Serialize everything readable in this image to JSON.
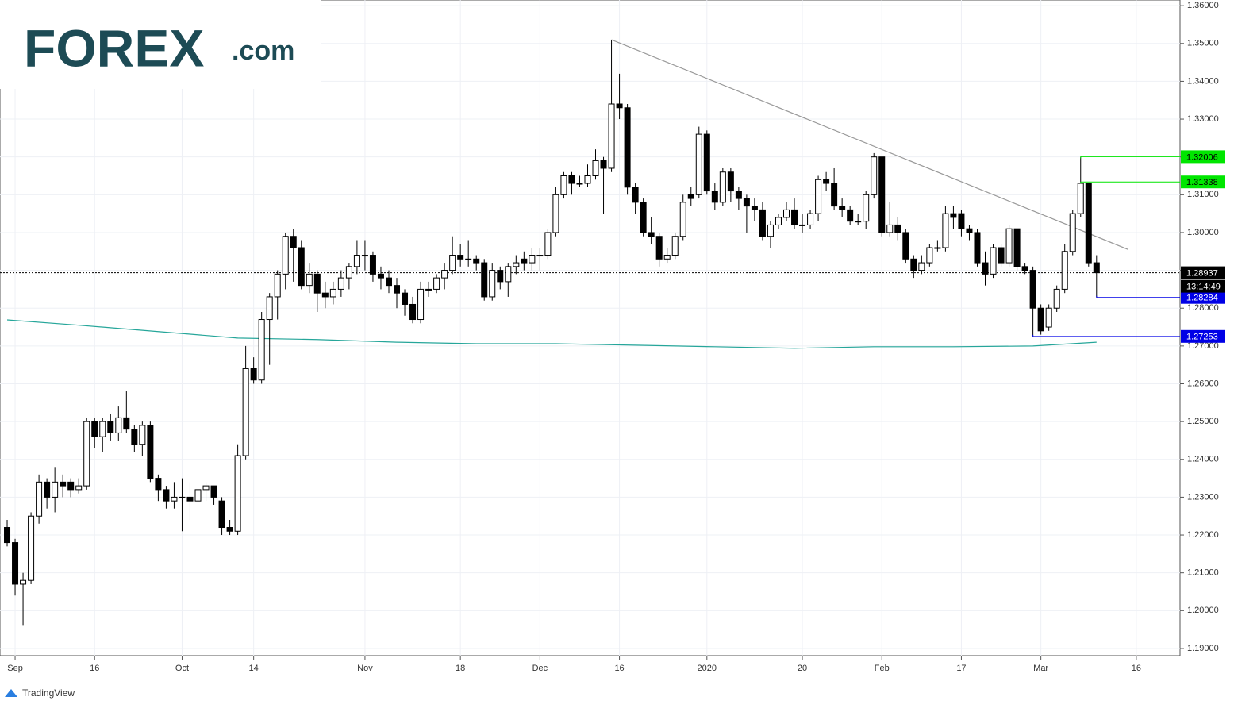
{
  "chart_data": {
    "type": "candlestick",
    "logo": {
      "brand": "FOREX",
      "suffix": ".com"
    },
    "footer": "TradingView",
    "xlim": [
      -0.9,
      147.5
    ],
    "xticks": [
      {
        "value": 1,
        "label": "Sep"
      },
      {
        "value": 11,
        "label": "16"
      },
      {
        "value": 22,
        "label": "Oct"
      },
      {
        "value": 31,
        "label": "14"
      },
      {
        "value": 45,
        "label": "Nov"
      },
      {
        "value": 57,
        "label": "18"
      },
      {
        "value": 67,
        "label": "Dec"
      },
      {
        "value": 77,
        "label": "16"
      },
      {
        "value": 88,
        "label": "2020"
      },
      {
        "value": 100,
        "label": "20"
      },
      {
        "value": 110,
        "label": "Feb"
      },
      {
        "value": 120,
        "label": "17"
      },
      {
        "value": 130,
        "label": "Mar"
      },
      {
        "value": 142,
        "label": "16"
      }
    ],
    "ylim": [
      1.1881,
      1.3615
    ],
    "yticks": [
      {
        "value": 1.19,
        "label": "1.19000"
      },
      {
        "value": 1.2,
        "label": "1.20000"
      },
      {
        "value": 1.21,
        "label": "1.21000"
      },
      {
        "value": 1.22,
        "label": "1.22000"
      },
      {
        "value": 1.23,
        "label": "1.23000"
      },
      {
        "value": 1.24,
        "label": "1.24000"
      },
      {
        "value": 1.25,
        "label": "1.25000"
      },
      {
        "value": 1.26,
        "label": "1.26000"
      },
      {
        "value": 1.27,
        "label": "1.27000"
      },
      {
        "value": 1.28,
        "label": "1.28000"
      },
      {
        "value": 1.29,
        "label": "1.29000"
      },
      {
        "value": 1.3,
        "label": "1.30000"
      },
      {
        "value": 1.31,
        "label": "1.31000"
      },
      {
        "value": 1.32,
        "label": "1.32000"
      },
      {
        "value": 1.33,
        "label": "1.33000"
      },
      {
        "value": 1.34,
        "label": "1.34000"
      },
      {
        "value": 1.35,
        "label": "1.35000"
      },
      {
        "value": 1.36,
        "label": "1.36000"
      }
    ],
    "grid": true,
    "up_color": "#ffffff",
    "down_color": "#000000",
    "open": [
      1.222,
      1.218,
      1.207,
      1.208,
      1.225,
      1.234,
      1.23,
      1.234,
      1.234,
      1.232,
      1.233,
      1.25,
      1.246,
      1.25,
      1.247,
      1.251,
      1.248,
      1.244,
      1.249,
      1.235,
      1.232,
      1.229,
      1.23,
      1.23,
      1.229,
      1.232,
      1.233,
      1.229,
      1.222,
      1.221,
      1.241,
      1.264,
      1.261,
      1.277,
      1.283,
      1.289,
      1.299,
      1.296,
      1.286,
      1.289,
      1.284,
      1.283,
      1.285,
      1.288,
      1.291,
      1.294,
      1.294,
      1.289,
      1.288,
      1.286,
      1.284,
      1.281,
      1.277,
      1.285,
      1.285,
      1.288,
      1.29,
      1.294,
      1.293,
      1.293,
      1.292,
      1.283,
      1.29,
      1.287,
      1.291,
      1.293,
      1.292,
      1.294,
      1.294,
      1.3,
      1.31,
      1.315,
      1.313,
      1.313,
      1.315,
      1.319,
      1.317,
      1.334,
      1.333,
      1.312,
      1.308,
      1.3,
      1.299,
      1.293,
      1.294,
      1.299,
      1.31,
      1.31,
      1.326,
      1.311,
      1.308,
      1.316,
      1.311,
      1.309,
      1.307,
      1.306,
      1.299,
      1.302,
      1.304,
      1.306,
      1.302,
      1.302,
      1.305,
      1.314,
      1.313,
      1.307,
      1.306,
      1.303,
      1.303,
      1.31,
      1.32,
      1.3,
      1.302,
      1.3,
      1.293,
      1.29,
      1.292,
      1.296,
      1.296,
      1.305,
      1.305,
      1.301,
      1.3,
      1.292,
      1.289,
      1.296,
      1.292,
      1.301,
      1.291,
      1.29,
      1.28,
      1.275,
      1.28,
      1.285,
      1.295,
      1.305,
      1.313,
      1.292
    ],
    "high": [
      1.224,
      1.219,
      1.21,
      1.226,
      1.236,
      1.235,
      1.238,
      1.236,
      1.235,
      1.235,
      1.251,
      1.251,
      1.251,
      1.252,
      1.254,
      1.258,
      1.249,
      1.25,
      1.25,
      1.236,
      1.233,
      1.234,
      1.235,
      1.234,
      1.238,
      1.234,
      1.233,
      1.23,
      1.224,
      1.244,
      1.27,
      1.267,
      1.279,
      1.284,
      1.29,
      1.3,
      1.301,
      1.298,
      1.292,
      1.29,
      1.287,
      1.287,
      1.29,
      1.292,
      1.298,
      1.298,
      1.295,
      1.291,
      1.29,
      1.288,
      1.285,
      1.283,
      1.287,
      1.287,
      1.289,
      1.292,
      1.299,
      1.297,
      1.298,
      1.294,
      1.293,
      1.292,
      1.291,
      1.292,
      1.294,
      1.295,
      1.296,
      1.296,
      1.301,
      1.312,
      1.316,
      1.316,
      1.315,
      1.318,
      1.322,
      1.32,
      1.351,
      1.342,
      1.334,
      1.313,
      1.309,
      1.304,
      1.3,
      1.296,
      1.3,
      1.31,
      1.312,
      1.328,
      1.327,
      1.313,
      1.317,
      1.317,
      1.312,
      1.31,
      1.309,
      1.308,
      1.303,
      1.305,
      1.308,
      1.309,
      1.305,
      1.306,
      1.315,
      1.316,
      1.317,
      1.309,
      1.307,
      1.305,
      1.311,
      1.321,
      1.32,
      1.308,
      1.304,
      1.301,
      1.294,
      1.294,
      1.297,
      1.298,
      1.307,
      1.307,
      1.306,
      1.302,
      1.301,
      1.295,
      1.297,
      1.297,
      1.302,
      1.301,
      1.292,
      1.291,
      1.281,
      1.281,
      1.286,
      1.297,
      1.306,
      1.32006,
      1.313,
      1.294
    ],
    "low": [
      1.217,
      1.204,
      1.196,
      1.207,
      1.223,
      1.227,
      1.226,
      1.23,
      1.23,
      1.231,
      1.232,
      1.243,
      1.242,
      1.245,
      1.245,
      1.247,
      1.242,
      1.241,
      1.234,
      1.229,
      1.227,
      1.227,
      1.221,
      1.224,
      1.228,
      1.229,
      1.228,
      1.22,
      1.22,
      1.22,
      1.24,
      1.26,
      1.26,
      1.265,
      1.277,
      1.285,
      1.287,
      1.285,
      1.284,
      1.279,
      1.28,
      1.281,
      1.283,
      1.285,
      1.289,
      1.29,
      1.287,
      1.285,
      1.284,
      1.28,
      1.278,
      1.276,
      1.276,
      1.283,
      1.284,
      1.285,
      1.289,
      1.291,
      1.291,
      1.29,
      1.282,
      1.282,
      1.285,
      1.283,
      1.289,
      1.29,
      1.29,
      1.29,
      1.293,
      1.299,
      1.309,
      1.31,
      1.312,
      1.312,
      1.314,
      1.305,
      1.316,
      1.33,
      1.31,
      1.305,
      1.299,
      1.297,
      1.291,
      1.292,
      1.293,
      1.298,
      1.307,
      1.309,
      1.31,
      1.306,
      1.307,
      1.308,
      1.306,
      1.3,
      1.303,
      1.298,
      1.296,
      1.301,
      1.303,
      1.301,
      1.3,
      1.301,
      1.303,
      1.311,
      1.306,
      1.304,
      1.302,
      1.302,
      1.301,
      1.309,
      1.299,
      1.299,
      1.298,
      1.292,
      1.288,
      1.289,
      1.291,
      1.295,
      1.295,
      1.301,
      1.299,
      1.298,
      1.291,
      1.286,
      1.288,
      1.291,
      1.291,
      1.29,
      1.289,
      1.27253,
      1.273,
      1.274,
      1.279,
      1.284,
      1.294,
      1.304,
      1.291,
      1.28284
    ],
    "close": [
      1.218,
      1.207,
      1.208,
      1.225,
      1.234,
      1.23,
      1.234,
      1.233,
      1.232,
      1.233,
      1.25,
      1.246,
      1.25,
      1.247,
      1.251,
      1.248,
      1.244,
      1.249,
      1.235,
      1.232,
      1.229,
      1.23,
      1.23,
      1.229,
      1.232,
      1.233,
      1.23,
      1.222,
      1.221,
      1.241,
      1.264,
      1.261,
      1.277,
      1.283,
      1.289,
      1.299,
      1.296,
      1.286,
      1.289,
      1.284,
      1.283,
      1.285,
      1.288,
      1.291,
      1.294,
      1.294,
      1.289,
      1.288,
      1.286,
      1.284,
      1.281,
      1.277,
      1.285,
      1.285,
      1.288,
      1.29,
      1.294,
      1.293,
      1.293,
      1.292,
      1.283,
      1.29,
      1.287,
      1.291,
      1.292,
      1.292,
      1.294,
      1.294,
      1.3,
      1.31,
      1.315,
      1.313,
      1.313,
      1.315,
      1.319,
      1.317,
      1.334,
      1.333,
      1.312,
      1.308,
      1.3,
      1.299,
      1.293,
      1.294,
      1.299,
      1.308,
      1.309,
      1.326,
      1.311,
      1.308,
      1.316,
      1.311,
      1.309,
      1.307,
      1.306,
      1.299,
      1.302,
      1.304,
      1.306,
      1.302,
      1.302,
      1.305,
      1.314,
      1.313,
      1.307,
      1.306,
      1.303,
      1.303,
      1.31,
      1.32,
      1.3,
      1.302,
      1.3,
      1.293,
      1.29,
      1.292,
      1.296,
      1.296,
      1.305,
      1.304,
      1.301,
      1.3,
      1.292,
      1.289,
      1.296,
      1.292,
      1.301,
      1.291,
      1.29,
      1.28,
      1.274,
      1.28,
      1.285,
      1.295,
      1.305,
      1.313,
      1.292,
      1.28937
    ],
    "moving_average": {
      "color": "#26a69a",
      "x": [
        0,
        9,
        19,
        29,
        39,
        49,
        59,
        69,
        79,
        89,
        99,
        109,
        119,
        129,
        137
      ],
      "values": [
        1.2769,
        1.2755,
        1.2738,
        1.2721,
        1.2717,
        1.271,
        1.2706,
        1.2706,
        1.2702,
        1.2698,
        1.2694,
        1.2698,
        1.2698,
        1.27,
        1.271
      ]
    },
    "trendline": {
      "color": "#999999",
      "x": [
        76,
        141
      ],
      "values": [
        1.351,
        1.2955
      ]
    },
    "levels": [
      {
        "value": 1.32006,
        "x": 135,
        "color": "#00e600"
      },
      {
        "value": 1.31338,
        "x": 135,
        "color": "#00e600"
      },
      {
        "value": 1.28284,
        "x": 137,
        "color": "#0000e6"
      },
      {
        "value": 1.27253,
        "x": 129,
        "color": "#0000e6"
      }
    ],
    "last_price": 1.28937,
    "countdown": "13:14:49"
  }
}
